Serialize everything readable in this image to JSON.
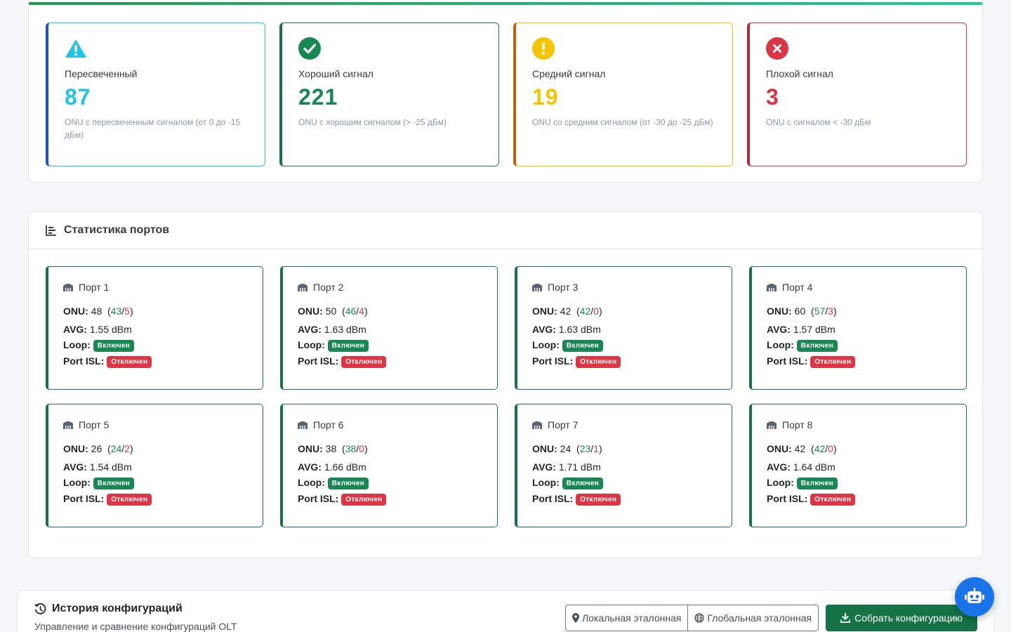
{
  "signal_cards": [
    {
      "title": "Пересвеченный",
      "value": "87",
      "desc": "ONU с пересвеченным сигналом (от 0 до -15 дБм)",
      "color": "#22c3e6",
      "icon": "warning-icon"
    },
    {
      "title": "Хороший сигнал",
      "value": "221",
      "desc": "ONU с хорошим сигналом (> -25 дБм)",
      "color": "#198754",
      "icon": "check-circle-icon"
    },
    {
      "title": "Средний сигнал",
      "value": "19",
      "desc": "ONU со средним сигналом (от -30 до -25 дБм)",
      "color": "#f5c400",
      "icon": "exclamation-circle-icon"
    },
    {
      "title": "Плохой сигнал",
      "value": "3",
      "desc": "ONU с сигналом < -30 дБм",
      "color": "#dc3545",
      "icon": "x-circle-icon"
    }
  ],
  "ports_section": {
    "title": "Статистика портов",
    "labels": {
      "onu": "ONU:",
      "avg": "AVG:",
      "loop": "Loop:",
      "isl": "Port ISL:"
    },
    "loop_status": "Включен",
    "isl_status": "Отключен"
  },
  "ports": [
    {
      "name": "Порт 1",
      "onu": "48",
      "ok": "43",
      "bad": "5",
      "avg": "1.55 dBm"
    },
    {
      "name": "Порт 2",
      "onu": "50",
      "ok": "46",
      "bad": "4",
      "avg": "1.63 dBm"
    },
    {
      "name": "Порт 3",
      "onu": "42",
      "ok": "42",
      "bad": "0",
      "avg": "1.63 dBm"
    },
    {
      "name": "Порт 4",
      "onu": "60",
      "ok": "57",
      "bad": "3",
      "avg": "1.57 dBm"
    },
    {
      "name": "Порт 5",
      "onu": "26",
      "ok": "24",
      "bad": "2",
      "avg": "1.54 dBm"
    },
    {
      "name": "Порт 6",
      "onu": "38",
      "ok": "38",
      "bad": "0",
      "avg": "1.66 dBm"
    },
    {
      "name": "Порт 7",
      "onu": "24",
      "ok": "23",
      "bad": "1",
      "avg": "1.71 dBm"
    },
    {
      "name": "Порт 8",
      "onu": "42",
      "ok": "42",
      "bad": "0",
      "avg": "1.64 dBm"
    }
  ],
  "history": {
    "title": "История конфигураций",
    "subtitle": "Управление и сравнение конфигураций OLT",
    "local_button": "Локальная эталонная",
    "global_button": "Глобальная эталонная",
    "collect_button": "Собрать конфигурацию"
  },
  "colors": {
    "accent": "#157347",
    "fab": "#1a73e8"
  }
}
